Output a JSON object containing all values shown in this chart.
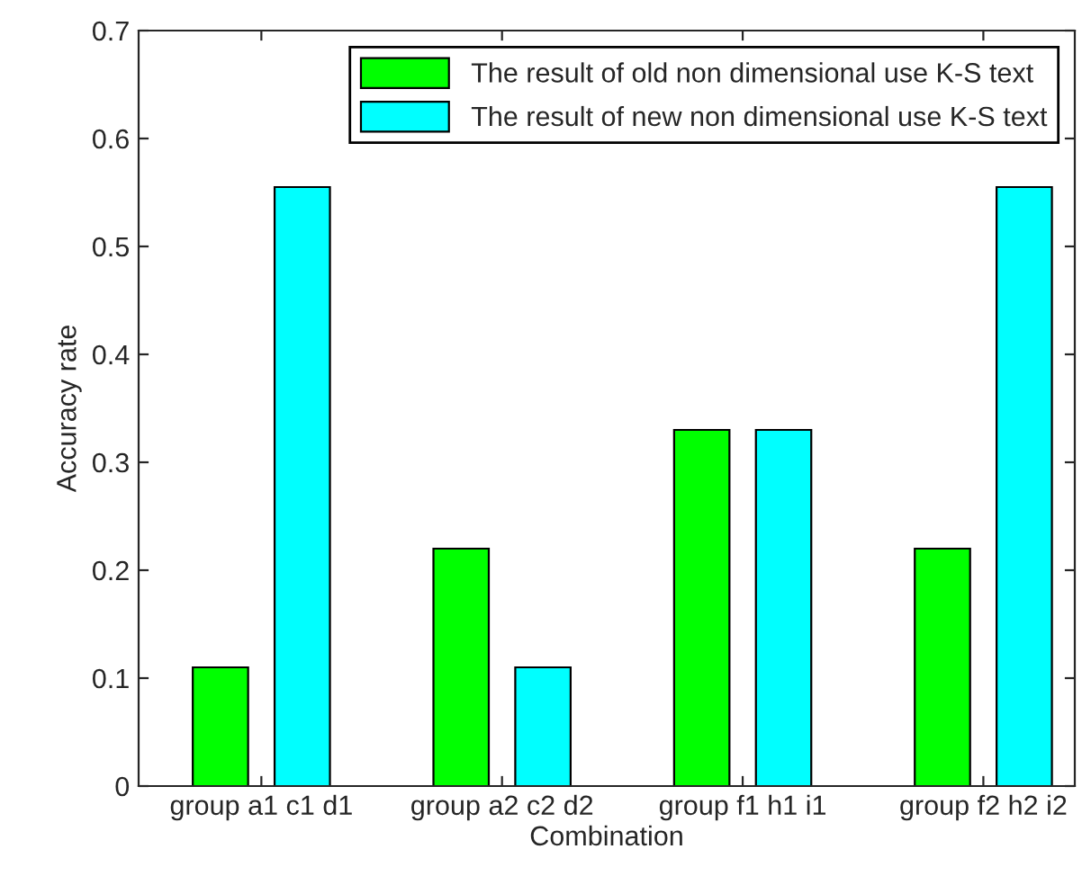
{
  "chart_data": {
    "type": "bar",
    "xlabel": "Combination",
    "ylabel": "Accuracy rate",
    "categories": [
      "group a1 c1 d1",
      "group a2 c2 d2",
      "group f1 h1 i1",
      "group f2 h2 i2"
    ],
    "series": [
      {
        "name": "The result of old non dimensional use K-S text",
        "color": "#00ff00",
        "values": [
          0.11,
          0.22,
          0.33,
          0.22
        ]
      },
      {
        "name": "The result of new non dimensional use K-S text",
        "color": "#00ffff",
        "values": [
          0.555,
          0.11,
          0.33,
          0.555
        ]
      }
    ],
    "ylim": [
      0,
      0.7
    ],
    "yticks": [
      0,
      0.1,
      0.2,
      0.3,
      0.4,
      0.5,
      0.6,
      0.7
    ],
    "grid": false,
    "legend": "top right"
  }
}
